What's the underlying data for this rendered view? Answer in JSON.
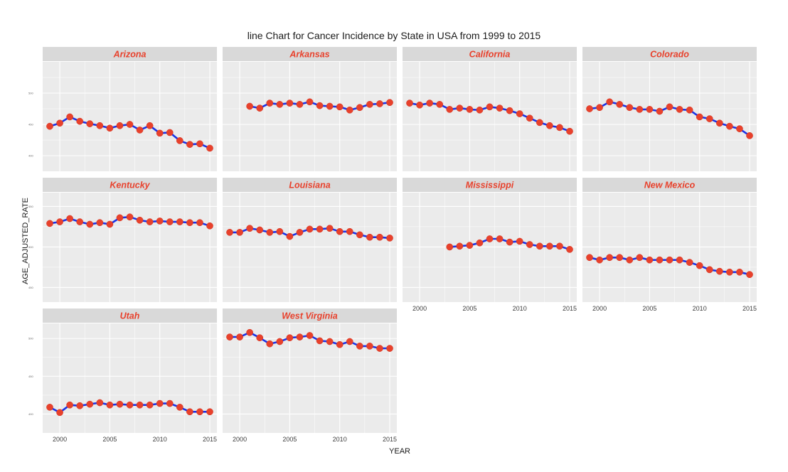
{
  "chart_data": {
    "type": "line",
    "facet": "small-multiples",
    "title": "line Chart for Cancer Incidence by State in USA from 1999 to 2015",
    "xlabel": "YEAR",
    "ylabel": "AGE_ADJUSTED_RATE",
    "xlim": [
      1999,
      2015
    ],
    "x_ticks": [
      2000,
      2005,
      2010,
      2015
    ],
    "colors": {
      "line": "#1a33e6",
      "point": "#e8412c",
      "strip_text": "#e8412c",
      "strip_bg": "#d9d9d9",
      "panel_bg": "#ebebeb"
    },
    "rows": [
      {
        "ylim": [
          375,
          550
        ],
        "y_ticks": [
          400,
          450,
          500
        ],
        "panels": [
          {
            "name": "Arizona",
            "x": [
              1999,
              2000,
              2001,
              2002,
              2003,
              2004,
              2005,
              2006,
              2007,
              2008,
              2009,
              2010,
              2011,
              2012,
              2013,
              2014,
              2015
            ],
            "values": [
              447,
              452,
              462,
              455,
              451,
              448,
              444,
              448,
              450,
              441,
              448,
              436,
              437,
              424,
              418,
              419,
              412
            ]
          },
          {
            "name": "Arkansas",
            "x": [
              2001,
              2002,
              2003,
              2004,
              2005,
              2006,
              2007,
              2008,
              2009,
              2010,
              2011,
              2012,
              2013,
              2014,
              2015
            ],
            "values": [
              479,
              476,
              484,
              482,
              484,
              482,
              486,
              480,
              479,
              478,
              473,
              477,
              482,
              483,
              485
            ]
          },
          {
            "name": "California",
            "x": [
              1999,
              2000,
              2001,
              2002,
              2003,
              2004,
              2005,
              2006,
              2007,
              2008,
              2009,
              2010,
              2011,
              2012,
              2013,
              2014,
              2015
            ],
            "values": [
              484,
              481,
              484,
              482,
              474,
              476,
              474,
              473,
              478,
              476,
              472,
              467,
              460,
              453,
              448,
              445,
              439
            ]
          },
          {
            "name": "Colorado",
            "x": [
              1999,
              2000,
              2001,
              2002,
              2003,
              2004,
              2005,
              2006,
              2007,
              2008,
              2009,
              2010,
              2011,
              2012,
              2013,
              2014,
              2015
            ],
            "values": [
              475,
              477,
              486,
              482,
              477,
              474,
              474,
              471,
              478,
              474,
              473,
              462,
              459,
              452,
              447,
              443,
              432
            ]
          }
        ]
      },
      {
        "ylim": [
          432,
          567
        ],
        "y_ticks": [
          450,
          500,
          550
        ],
        "panels": [
          {
            "name": "Kentucky",
            "x": [
              1999,
              2000,
              2001,
              2002,
              2003,
              2004,
              2005,
              2006,
              2007,
              2008,
              2009,
              2010,
              2011,
              2012,
              2013,
              2014,
              2015
            ],
            "values": [
              529,
              531,
              535,
              531,
              528,
              530,
              528,
              536,
              537,
              533,
              531,
              532,
              531,
              531,
              530,
              530,
              526
            ]
          },
          {
            "name": "Louisiana",
            "x": [
              1999,
              2000,
              2001,
              2002,
              2003,
              2004,
              2005,
              2006,
              2007,
              2008,
              2009,
              2010,
              2011,
              2012,
              2013,
              2014,
              2015
            ],
            "values": [
              518,
              518,
              523,
              521,
              518,
              519,
              513,
              518,
              522,
              522,
              523,
              519,
              519,
              515,
              512,
              512,
              511
            ]
          },
          {
            "name": "Mississippi",
            "x": [
              2003,
              2004,
              2005,
              2006,
              2007,
              2008,
              2009,
              2010,
              2011,
              2012,
              2013,
              2014,
              2015
            ],
            "values": [
              500,
              501,
              502,
              505,
              510,
              510,
              506,
              507,
              503,
              501,
              501,
              501,
              497
            ]
          },
          {
            "name": "New Mexico",
            "x": [
              1999,
              2000,
              2001,
              2002,
              2003,
              2004,
              2005,
              2006,
              2007,
              2008,
              2009,
              2010,
              2011,
              2012,
              2013,
              2014,
              2015
            ],
            "values": [
              487,
              484,
              487,
              487,
              484,
              487,
              484,
              484,
              484,
              484,
              481,
              477,
              472,
              470,
              469,
              469,
              466
            ]
          }
        ]
      },
      {
        "ylim": [
          375,
          520
        ],
        "y_ticks": [
          400,
          450,
          500
        ],
        "panels": [
          {
            "name": "Utah",
            "x": [
              1999,
              2000,
              2001,
              2002,
              2003,
              2004,
              2005,
              2006,
              2007,
              2008,
              2009,
              2010,
              2011,
              2012,
              2013,
              2014,
              2015
            ],
            "values": [
              409,
              402,
              412,
              411,
              413,
              415,
              412,
              413,
              412,
              412,
              412,
              414,
              414,
              409,
              403,
              403,
              403
            ]
          },
          {
            "name": "West Virginia",
            "x": [
              1999,
              2000,
              2001,
              2002,
              2003,
              2004,
              2005,
              2006,
              2007,
              2008,
              2009,
              2010,
              2011,
              2012,
              2013,
              2014,
              2015
            ],
            "values": [
              502,
              502,
              508,
              501,
              493,
              496,
              501,
              502,
              504,
              497,
              496,
              492,
              496,
              490,
              490,
              487,
              487
            ]
          }
        ]
      }
    ]
  }
}
